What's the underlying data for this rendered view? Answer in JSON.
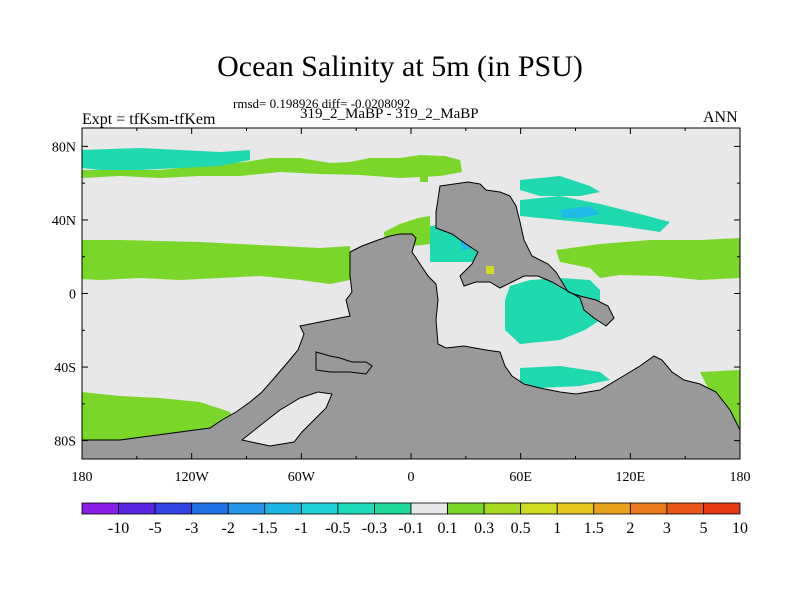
{
  "title": "Ocean Salinity at 5m (in PSU)",
  "stats_line": "rmsd= 0.198926 diff= -0.0208092",
  "experiment_pair": "319_2_MaBP - 319_2_MaBP",
  "expt_label": "Expt = tfKsm-tfKem",
  "period": "ANN",
  "map": {
    "lon_range": [
      -180,
      180
    ],
    "lat_range": [
      -90,
      90
    ],
    "x_ticks": [
      {
        "value": -180,
        "label": "180"
      },
      {
        "value": -120,
        "label": "120W"
      },
      {
        "value": -60,
        "label": "60W"
      },
      {
        "value": 0,
        "label": "0"
      },
      {
        "value": 60,
        "label": "60E"
      },
      {
        "value": 120,
        "label": "120E"
      },
      {
        "value": 180,
        "label": "180"
      }
    ],
    "y_ticks": [
      {
        "value": 80,
        "label": "80N"
      },
      {
        "value": 40,
        "label": "40N"
      },
      {
        "value": 0,
        "label": "0"
      },
      {
        "value": -40,
        "label": "40S"
      },
      {
        "value": -80,
        "label": "80S"
      }
    ],
    "colors": {
      "ocean_neutral": "#e8e8e8",
      "land": "#999999",
      "positive": "#7ad628",
      "negative": "#1fd9b0",
      "strong_negative": "#21b9e6"
    }
  },
  "colorbar": {
    "labels": [
      "-10",
      "-5",
      "-3",
      "-2",
      "-1.5",
      "-1",
      "-0.5",
      "-0.3",
      "-0.1",
      "0.1",
      "0.3",
      "0.5",
      "1",
      "1.5",
      "2",
      "3",
      "5",
      "10"
    ],
    "colors": [
      "#8a1de6",
      "#5a25e0",
      "#3344e3",
      "#1f6fe6",
      "#2295e8",
      "#1fb5e3",
      "#1fd0d6",
      "#1ddbb8",
      "#21d99a",
      "#e8e8e8",
      "#7ad628",
      "#a9da23",
      "#cfdc1f",
      "#e6c81e",
      "#e8a21e",
      "#e87a1c",
      "#e8571a",
      "#e63a17"
    ]
  }
}
